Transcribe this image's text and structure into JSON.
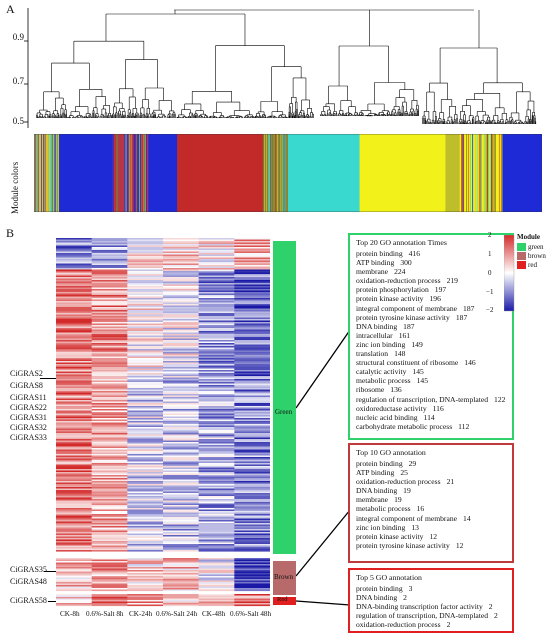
{
  "panel_a": {
    "letter": "A",
    "yticks": [
      "0.9",
      "0.7",
      "0.5"
    ],
    "module_colors_label": "Module colors",
    "module_strip": [
      {
        "color": "#e3c02a",
        "w": 3.5
      },
      {
        "color": "#1d2ad6",
        "w": 7.5
      },
      {
        "color": "#b8344a",
        "w": 5
      },
      {
        "color": "#1d2ad6",
        "w": 4
      },
      {
        "color": "#c22a2a",
        "w": 12
      },
      {
        "color": "#8a8a3a",
        "w": 3.5
      },
      {
        "color": "#3ad9cf",
        "w": 10
      },
      {
        "color": "#f2f21a",
        "w": 12
      },
      {
        "color": "#bebe2a",
        "w": 2
      },
      {
        "color": "#f2f21a",
        "w": 6
      },
      {
        "color": "#1d2ad6",
        "w": 5.5
      }
    ]
  },
  "panel_b": {
    "letter": "B",
    "gene_labels": [
      "CiGRAS2",
      "CiGRAS8",
      "CiGRAS11",
      "CiGRAS22",
      "CiGRAS31",
      "CiGRAS32",
      "CiGRAS33"
    ],
    "gene_labels_brown": [
      "CiGRAS35",
      "CiGRAS48"
    ],
    "gene_labels_red": [
      "CiGRAS58"
    ],
    "columns": [
      "CK-8h",
      "0.6%-Salt 8h",
      "CK-24h",
      "0.6%-Salt 24h",
      "CK-48h",
      "0.6%-Salt 48h"
    ],
    "modules": [
      {
        "name": "Green",
        "color": "#2fd16a"
      },
      {
        "name": "Brown",
        "color": "#b86a6a"
      },
      {
        "name": "Red",
        "color": "#e02020"
      }
    ],
    "colorbar": {
      "ticks": [
        "2",
        "1",
        "0",
        "−1",
        "−2"
      ],
      "colors": [
        "#d42a2a",
        "#ffffff",
        "#1a1aa8"
      ]
    },
    "legend": {
      "title": "Module",
      "items": [
        {
          "label": "green",
          "color": "#2fd16a"
        },
        {
          "label": "brown",
          "color": "#b86a6a"
        },
        {
          "label": "red",
          "color": "#e02020"
        }
      ]
    },
    "go_green": {
      "title": "Top 20 GO annotation  Times",
      "border": "#2fd16a",
      "rows": [
        {
          "term": "protein binding",
          "value": "416"
        },
        {
          "term": "ATP binding",
          "value": "300"
        },
        {
          "term": "membrane",
          "value": "224"
        },
        {
          "term": "oxidation-reduction process",
          "value": "219"
        },
        {
          "term": "protein phosphorylation",
          "value": "197"
        },
        {
          "term": "protein kinase activity",
          "value": "196"
        },
        {
          "term": "integral component of membrane",
          "value": "187"
        },
        {
          "term": "protein tyrosine kinase activity",
          "value": "187"
        },
        {
          "term": "DNA binding",
          "value": "187"
        },
        {
          "term": "intracellular",
          "value": "161"
        },
        {
          "term": "zinc ion binding",
          "value": "149"
        },
        {
          "term": "translation",
          "value": "148"
        },
        {
          "term": "structural constituent of ribosome",
          "value": "146"
        },
        {
          "term": "catalytic activity",
          "value": "145"
        },
        {
          "term": "metabolic process",
          "value": "145"
        },
        {
          "term": "ribosome",
          "value": "136"
        },
        {
          "term": "regulation of transcription, DNA-templated",
          "value": "122"
        },
        {
          "term": "oxidoreductase activity",
          "value": "116"
        },
        {
          "term": "nucleic acid binding",
          "value": "114"
        },
        {
          "term": "carbohydrate metabolic process",
          "value": "112"
        }
      ]
    },
    "go_brown": {
      "title": "Top 10 GO annotation",
      "border": "#c0393b",
      "rows": [
        {
          "term": "protein binding",
          "value": "29"
        },
        {
          "term": "ATP binding",
          "value": "25"
        },
        {
          "term": "oxidation-reduction process",
          "value": "21"
        },
        {
          "term": "DNA binding",
          "value": "19"
        },
        {
          "term": "membrane",
          "value": "19"
        },
        {
          "term": "metabolic process",
          "value": "16"
        },
        {
          "term": "integral component of membrane",
          "value": "14"
        },
        {
          "term": "zinc ion binding",
          "value": "13"
        },
        {
          "term": "protein kinase activity",
          "value": "12"
        },
        {
          "term": "protein tyrosine kinase activity",
          "value": "12"
        }
      ]
    },
    "go_red": {
      "title": "Top 5 GO annotation",
      "border": "#e02020",
      "rows": [
        {
          "term": "protein binding",
          "value": "3"
        },
        {
          "term": "DNA binding",
          "value": "2"
        },
        {
          "term": "DNA-binding transcription factor activity",
          "value": "2"
        },
        {
          "term": "regulation of transcription, DNA-templated",
          "value": "2"
        },
        {
          "term": "oxidation-reduction process",
          "value": "2"
        }
      ]
    }
  }
}
